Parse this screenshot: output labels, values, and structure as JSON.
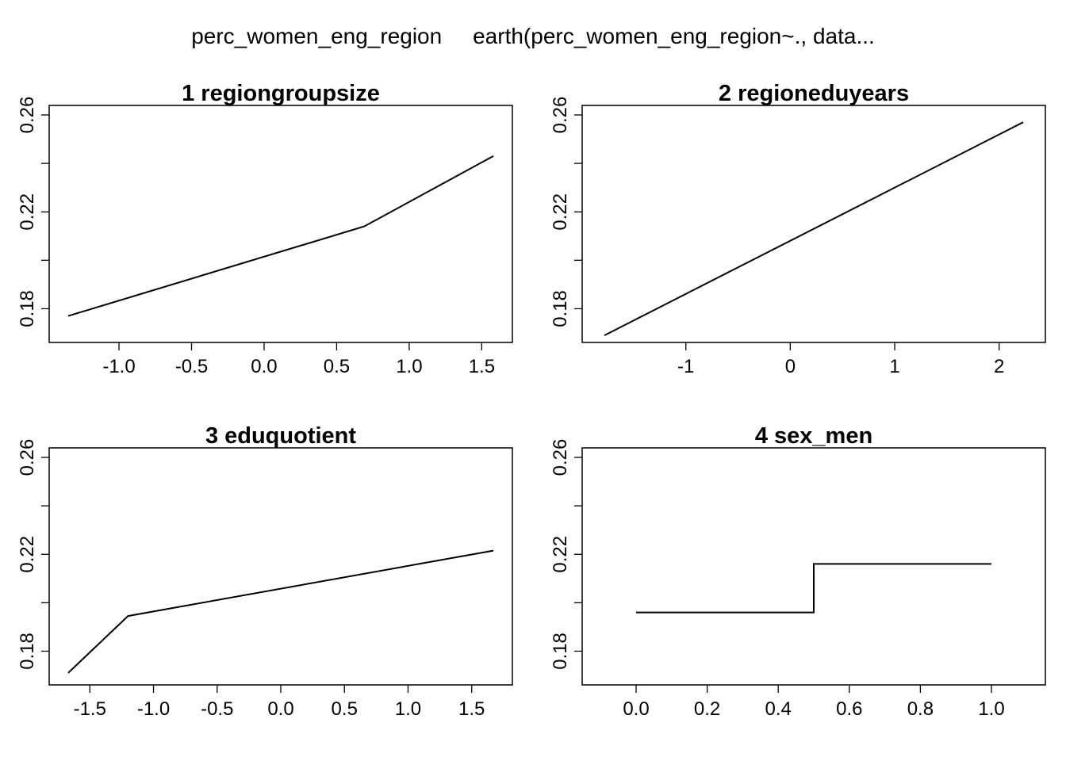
{
  "title_left": "perc_women_eng_region",
  "title_right": "earth(perc_women_eng_region~., data...",
  "chart_data": [
    {
      "type": "line",
      "title": "1  regiongroupsize",
      "xlabel": "",
      "ylabel": "",
      "xlim": [
        -1.35,
        1.58
      ],
      "ylim": [
        0.17,
        0.26
      ],
      "xticks": [
        -1.0,
        -0.5,
        0.0,
        0.5,
        1.0,
        1.5
      ],
      "xtick_labels": [
        "-1.0",
        "-0.5",
        "0.0",
        "0.5",
        "1.0",
        "1.5"
      ],
      "yticks": [
        0.18,
        0.22,
        0.26
      ],
      "ytick_labels": [
        "0.18",
        "0.22",
        "0.26"
      ],
      "x": [
        -1.35,
        0.69,
        1.58
      ],
      "y": [
        0.177,
        0.214,
        0.243
      ]
    },
    {
      "type": "line",
      "title": "2  regioneduyears",
      "xlabel": "",
      "ylabel": "",
      "xlim": [
        -1.78,
        2.23
      ],
      "ylim": [
        0.17,
        0.26
      ],
      "xticks": [
        -1,
        0,
        1,
        2
      ],
      "xtick_labels": [
        "-1",
        "0",
        "1",
        "2"
      ],
      "yticks": [
        0.18,
        0.22,
        0.26
      ],
      "ytick_labels": [
        "0.18",
        "0.22",
        "0.26"
      ],
      "x": [
        -1.78,
        2.23
      ],
      "y": [
        0.169,
        0.257
      ]
    },
    {
      "type": "line",
      "title": "3  eduquotient",
      "xlabel": "",
      "ylabel": "",
      "xlim": [
        -1.67,
        1.67
      ],
      "ylim": [
        0.17,
        0.26
      ],
      "xticks": [
        -1.5,
        -1.0,
        -0.5,
        0.0,
        0.5,
        1.0,
        1.5
      ],
      "xtick_labels": [
        "-1.5",
        "-1.0",
        "-0.5",
        "0.0",
        "0.5",
        "1.0",
        "1.5"
      ],
      "yticks": [
        0.18,
        0.22,
        0.26
      ],
      "ytick_labels": [
        "0.18",
        "0.22",
        "0.26"
      ],
      "x": [
        -1.67,
        -1.2,
        1.67
      ],
      "y": [
        0.171,
        0.1945,
        0.2215
      ]
    },
    {
      "type": "line",
      "title": "4  sex_men",
      "xlabel": "",
      "ylabel": "",
      "xlim": [
        0.0,
        1.0
      ],
      "ylim": [
        0.17,
        0.26
      ],
      "xticks": [
        0.0,
        0.2,
        0.4,
        0.6,
        0.8,
        1.0
      ],
      "xtick_labels": [
        "0.0",
        "0.2",
        "0.4",
        "0.6",
        "0.8",
        "1.0"
      ],
      "yticks": [
        0.18,
        0.22,
        0.26
      ],
      "ytick_labels": [
        "0.18",
        "0.22",
        "0.26"
      ],
      "x": [
        0.0,
        0.5,
        0.5,
        1.0
      ],
      "y": [
        0.196,
        0.196,
        0.216,
        0.216
      ]
    }
  ]
}
